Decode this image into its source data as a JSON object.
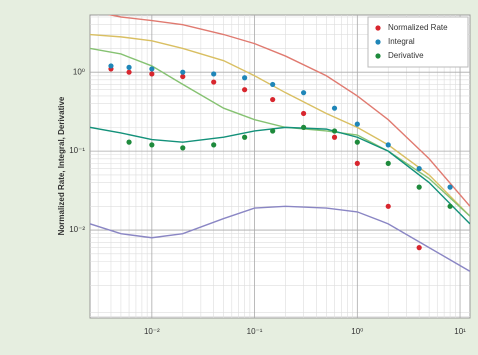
{
  "chart_data": {
    "type": "scatter",
    "y_label": "Normalized Rate, Integral, Derivative",
    "log_x": true,
    "log_y": true,
    "grid": true,
    "legend": "upper right",
    "xlim": [
      0.0025,
      12.5
    ],
    "xticks": [
      {
        "value": 0.01,
        "label": "10⁻²"
      },
      {
        "value": 0.1,
        "label": "10⁻¹"
      },
      {
        "value": 1,
        "label": "10⁰"
      },
      {
        "value": 10,
        "label": "10¹"
      }
    ],
    "ylim": [
      0.00077,
      5.3
    ],
    "yticks": [
      {
        "value": 0.01,
        "label": "10⁻²"
      },
      {
        "value": 0.1,
        "label": "10⁻¹"
      },
      {
        "value": 1,
        "label": "10⁰"
      }
    ],
    "x": [
      0.004,
      0.006,
      0.01,
      0.02,
      0.04,
      0.08,
      0.15,
      0.3,
      0.6,
      1,
      2,
      4,
      8
    ],
    "series": [
      {
        "name": "Normalized Rate",
        "color": "#d8262e",
        "values": [
          1.1,
          1.0,
          0.95,
          0.88,
          0.75,
          0.6,
          0.45,
          0.3,
          0.15,
          0.07,
          0.02,
          0.006,
          null
        ]
      },
      {
        "name": "Integral",
        "color": "#1f86b8",
        "values": [
          1.2,
          1.15,
          1.1,
          1.0,
          0.95,
          0.85,
          0.7,
          0.55,
          0.35,
          0.22,
          0.12,
          0.06,
          0.035
        ]
      },
      {
        "name": "Derivative",
        "color": "#1e8a3c",
        "values": [
          null,
          0.13,
          0.12,
          0.11,
          0.12,
          0.15,
          0.18,
          0.2,
          0.18,
          0.13,
          0.07,
          0.035,
          0.02
        ]
      }
    ],
    "curve_x": [
      0.0025,
      0.005,
      0.01,
      0.02,
      0.05,
      0.1,
      0.2,
      0.5,
      1,
      2,
      5,
      12.5
    ],
    "type_curves": [
      {
        "color": "#e07a70",
        "values": [
          6,
          5,
          4.5,
          4,
          3,
          2.3,
          1.6,
          0.9,
          0.5,
          0.25,
          0.08,
          0.02
        ]
      },
      {
        "color": "#d9bf62",
        "values": [
          3,
          2.8,
          2.5,
          2,
          1.4,
          0.9,
          0.55,
          0.3,
          0.2,
          0.12,
          0.05,
          0.015
        ]
      },
      {
        "color": "#86c272",
        "values": [
          2,
          1.7,
          1.2,
          0.7,
          0.35,
          0.25,
          0.2,
          0.18,
          0.16,
          0.1,
          0.045,
          0.015
        ]
      },
      {
        "color": "#13917a",
        "values": [
          0.2,
          0.17,
          0.14,
          0.13,
          0.15,
          0.18,
          0.2,
          0.19,
          0.15,
          0.1,
          0.04,
          0.012
        ]
      },
      {
        "color": "#8a86c4",
        "values": [
          0.012,
          0.009,
          0.008,
          0.009,
          0.014,
          0.019,
          0.02,
          0.019,
          0.017,
          0.012,
          0.006,
          0.003
        ]
      }
    ]
  }
}
